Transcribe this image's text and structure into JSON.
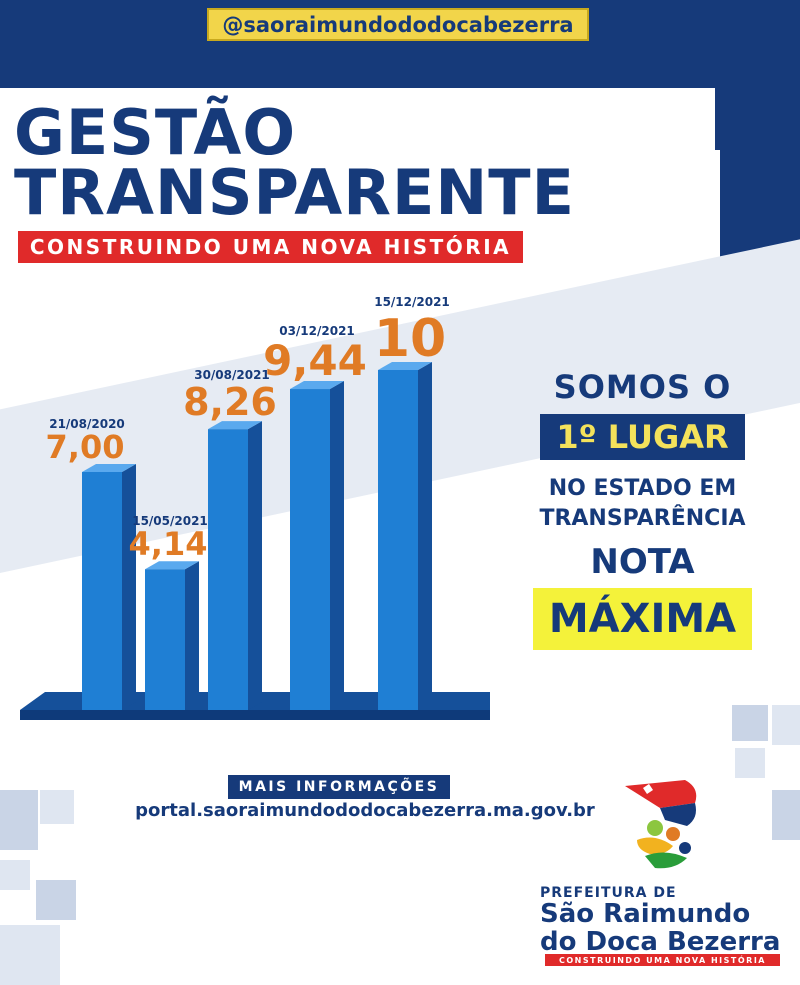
{
  "header": {
    "handle": "@saoraimundododocabezerra"
  },
  "title": {
    "line1": "GESTÃO",
    "line2": "TRANSPARENTE",
    "subtitle": "CONSTRUINDO UMA NOVA HISTÓRIA"
  },
  "chart_data": {
    "type": "bar",
    "categories": [
      "21/08/2020",
      "15/05/2021",
      "30/08/2021",
      "03/12/2021",
      "15/12/2021"
    ],
    "values": [
      7.0,
      4.14,
      8.26,
      9.44,
      10
    ],
    "labels": [
      "7,00",
      "4,14",
      "8,26",
      "9,44",
      "10"
    ],
    "title": "",
    "xlabel": "",
    "ylabel": "",
    "ylim": [
      0,
      10
    ],
    "colors": {
      "bar": "#1f7fd4",
      "bar_side": "#15509a",
      "value_label": "#e07b25",
      "date_label": "#163a7a"
    }
  },
  "rank": {
    "somos": "SOMOS O",
    "lugar": "1º LUGAR",
    "estado_line1": "NO ESTADO EM",
    "estado_line2": "TRANSPARÊNCIA",
    "nota": "NOTA",
    "maxima": "MÁXIMA"
  },
  "info": {
    "mais": "MAIS INFORMAÇÕES",
    "portal": "portal.saoraimundododocabezerra.ma.gov.br"
  },
  "logo": {
    "prefeitura": "PREFEITURA DE",
    "name_line1": "São Raimundo",
    "name_line2": "do Doca Bezerra",
    "slogan": "CONSTRUINDO UMA NOVA HISTÓRIA"
  },
  "colors": {
    "navy": "#163a7a",
    "red": "#e02a2a",
    "orange": "#e07b25",
    "yellow": "#f4f23a",
    "handle_yellow": "#f2d54a"
  }
}
